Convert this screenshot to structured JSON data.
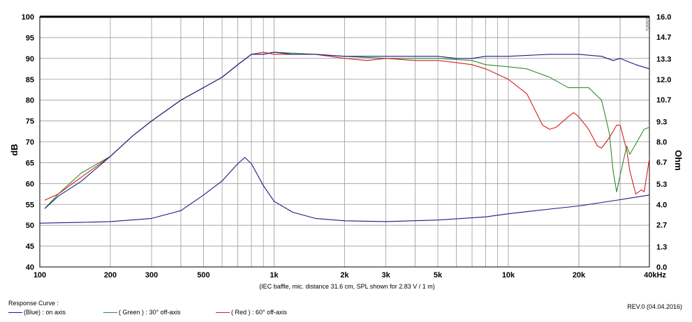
{
  "chart_data": {
    "type": "line",
    "xlabel_note": "(IEC baffle, mic. distance 31.6 cm, SPL shown for 2.83 V / 1 m)",
    "ylabel_left": "dB",
    "ylabel_right": "Ohm",
    "side_tag": "DBBS",
    "x_scale": "log",
    "xlim": [
      100,
      40000
    ],
    "ylim_left": [
      40,
      100
    ],
    "ylim_right": [
      0.0,
      16.0
    ],
    "grid": true,
    "x_ticks": [
      {
        "value": 100,
        "label": "100"
      },
      {
        "value": 200,
        "label": "200"
      },
      {
        "value": 300,
        "label": "300"
      },
      {
        "value": 500,
        "label": "500"
      },
      {
        "value": 1000,
        "label": "1k"
      },
      {
        "value": 2000,
        "label": "2k"
      },
      {
        "value": 3000,
        "label": "3k"
      },
      {
        "value": 5000,
        "label": "5k"
      },
      {
        "value": 10000,
        "label": "10k"
      },
      {
        "value": 20000,
        "label": "20k"
      },
      {
        "value": 40000,
        "label": "40kHz"
      }
    ],
    "y_ticks_left": [
      "40",
      "45",
      "50",
      "55",
      "60",
      "65",
      "70",
      "75",
      "80",
      "85",
      "90",
      "95",
      "100"
    ],
    "y_ticks_right": [
      "0.0",
      "1.3",
      "2.7",
      "4.0",
      "5.3",
      "6.7",
      "8.0",
      "9.3",
      "10.7",
      "12.0",
      "13.3",
      "14.7",
      "16.0"
    ],
    "series": [
      {
        "name": "(Blue) : on axis",
        "color": "#1a1a80",
        "axis": "left",
        "points": [
          [
            105,
            54
          ],
          [
            120,
            57
          ],
          [
            150,
            60.5
          ],
          [
            200,
            66.5
          ],
          [
            250,
            71.5
          ],
          [
            300,
            75
          ],
          [
            400,
            80
          ],
          [
            500,
            83
          ],
          [
            600,
            85.5
          ],
          [
            700,
            88.5
          ],
          [
            800,
            91
          ],
          [
            900,
            91
          ],
          [
            1000,
            91.5
          ],
          [
            1200,
            91
          ],
          [
            1500,
            91
          ],
          [
            2000,
            90.5
          ],
          [
            3000,
            90.5
          ],
          [
            4000,
            90.5
          ],
          [
            5000,
            90.5
          ],
          [
            6000,
            90
          ],
          [
            7000,
            90
          ],
          [
            8000,
            90.5
          ],
          [
            10000,
            90.5
          ],
          [
            15000,
            91
          ],
          [
            20000,
            91
          ],
          [
            25000,
            90.5
          ],
          [
            28000,
            89.5
          ],
          [
            30000,
            90
          ],
          [
            35000,
            88.5
          ],
          [
            40000,
            87.5
          ]
        ]
      },
      {
        "name": "( Green ) : 30° off-axis",
        "color": "#2e8b2e",
        "axis": "left",
        "points": [
          [
            105,
            54
          ],
          [
            120,
            57.5
          ],
          [
            150,
            62.5
          ],
          [
            200,
            66.5
          ],
          [
            250,
            71.5
          ],
          [
            300,
            75
          ],
          [
            400,
            80
          ],
          [
            500,
            83
          ],
          [
            600,
            85.5
          ],
          [
            700,
            88.5
          ],
          [
            800,
            91
          ],
          [
            900,
            91
          ],
          [
            1000,
            91.5
          ],
          [
            1500,
            91
          ],
          [
            2000,
            90.5
          ],
          [
            3000,
            90
          ],
          [
            5000,
            90
          ],
          [
            7000,
            89.5
          ],
          [
            8000,
            88.5
          ],
          [
            10000,
            88
          ],
          [
            12000,
            87.5
          ],
          [
            15000,
            85.5
          ],
          [
            18000,
            83
          ],
          [
            20000,
            83
          ],
          [
            22000,
            83
          ],
          [
            25000,
            80
          ],
          [
            27000,
            72
          ],
          [
            28000,
            63
          ],
          [
            29000,
            58
          ],
          [
            30000,
            62
          ],
          [
            32000,
            69
          ],
          [
            33000,
            67
          ],
          [
            35000,
            69.5
          ],
          [
            38000,
            73
          ],
          [
            40000,
            73.5
          ]
        ]
      },
      {
        "name": "( Red ) : 60° off-axis",
        "color": "#d42020",
        "axis": "left",
        "points": [
          [
            105,
            56
          ],
          [
            120,
            57.5
          ],
          [
            150,
            61.5
          ],
          [
            200,
            66.5
          ],
          [
            250,
            71.5
          ],
          [
            300,
            75
          ],
          [
            400,
            80
          ],
          [
            500,
            83
          ],
          [
            600,
            85.5
          ],
          [
            700,
            88.5
          ],
          [
            800,
            91
          ],
          [
            900,
            91.5
          ],
          [
            1000,
            91
          ],
          [
            1500,
            91
          ],
          [
            2000,
            90
          ],
          [
            2500,
            89.5
          ],
          [
            3000,
            90
          ],
          [
            4000,
            89.5
          ],
          [
            5000,
            89.5
          ],
          [
            6000,
            89
          ],
          [
            7000,
            88.5
          ],
          [
            8000,
            87.5
          ],
          [
            10000,
            85
          ],
          [
            12000,
            81.5
          ],
          [
            14000,
            74
          ],
          [
            15000,
            73
          ],
          [
            16000,
            73.5
          ],
          [
            18000,
            76
          ],
          [
            19000,
            77
          ],
          [
            20000,
            76
          ],
          [
            22000,
            73
          ],
          [
            24000,
            69
          ],
          [
            25000,
            68.5
          ],
          [
            27000,
            71
          ],
          [
            29000,
            74
          ],
          [
            30000,
            74
          ],
          [
            32000,
            68
          ],
          [
            33000,
            63
          ],
          [
            35000,
            57.5
          ],
          [
            37000,
            58.5
          ],
          [
            38000,
            58
          ],
          [
            40000,
            66
          ]
        ]
      },
      {
        "name": "Impedance (Blue)",
        "color": "#1a1a80",
        "axis": "right",
        "points": [
          [
            100,
            2.8
          ],
          [
            150,
            2.85
          ],
          [
            200,
            2.9
          ],
          [
            300,
            3.1
          ],
          [
            400,
            3.6
          ],
          [
            500,
            4.6
          ],
          [
            600,
            5.5
          ],
          [
            700,
            6.6
          ],
          [
            750,
            7.0
          ],
          [
            800,
            6.6
          ],
          [
            900,
            5.2
          ],
          [
            1000,
            4.2
          ],
          [
            1200,
            3.5
          ],
          [
            1500,
            3.1
          ],
          [
            2000,
            2.95
          ],
          [
            3000,
            2.9
          ],
          [
            5000,
            3.0
          ],
          [
            8000,
            3.2
          ],
          [
            10000,
            3.4
          ],
          [
            15000,
            3.7
          ],
          [
            20000,
            3.9
          ],
          [
            30000,
            4.3
          ],
          [
            40000,
            4.6
          ]
        ]
      }
    ]
  },
  "legend": {
    "title": "Response Curve :",
    "items": [
      {
        "label": "(Blue) : on axis",
        "color": "#1a1a80"
      },
      {
        "label": "( Green ) : 30° off-axis",
        "color": "#2e8b2e"
      },
      {
        "label": "( Red ) : 60° off-axis",
        "color": "#d42020"
      }
    ]
  },
  "revision": "REV.0 (04.04.2016)"
}
